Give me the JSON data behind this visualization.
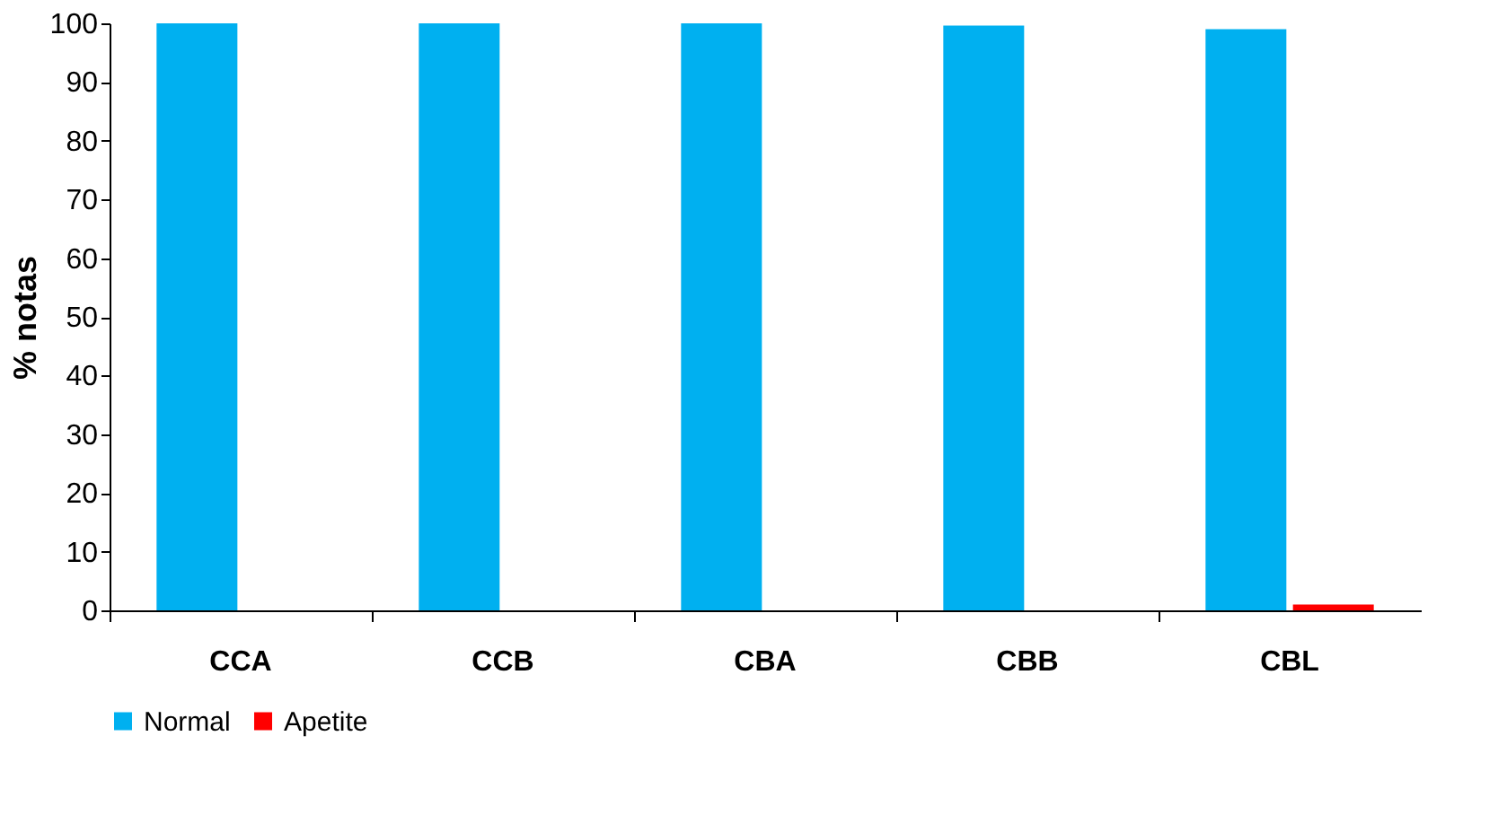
{
  "chart_data": {
    "type": "bar",
    "ylabel": "% notas",
    "categories": [
      "CCA",
      "CCB",
      "CBA",
      "CBB",
      "CBL"
    ],
    "series": [
      {
        "name": "Normal",
        "color": "#00b0f0",
        "values": [
          100,
          100,
          100,
          99.6,
          99
        ]
      },
      {
        "name": "Apetite",
        "color": "#ff0000",
        "values": [
          0,
          0,
          0,
          0,
          1
        ]
      }
    ],
    "ylim": [
      0,
      100
    ],
    "yticks": [
      0,
      10,
      20,
      30,
      40,
      50,
      60,
      70,
      80,
      90,
      100
    ],
    "grid": false,
    "legend": "bottom"
  }
}
